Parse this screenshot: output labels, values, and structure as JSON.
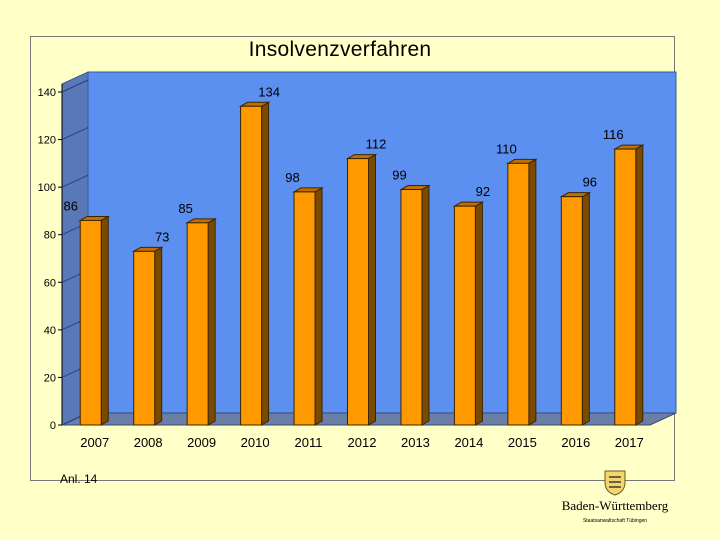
{
  "chart_data": {
    "type": "bar",
    "title": "Insolvenzverfahren",
    "categories": [
      "2007",
      "2008",
      "2009",
      "2010",
      "2011",
      "2012",
      "2013",
      "2014",
      "2015",
      "2016",
      "2017"
    ],
    "values": [
      86,
      73,
      85,
      134,
      98,
      112,
      99,
      92,
      110,
      96,
      116
    ],
    "yticks": [
      0,
      20,
      40,
      60,
      80,
      100,
      120,
      140
    ],
    "ylim": [
      0,
      140
    ],
    "grid": false,
    "legend": "none",
    "bar_color": "#ff9900",
    "wall_color": "#5b8ff0",
    "floor_color": "#6a7fa8"
  },
  "footer": {
    "note": "Anl. 14",
    "logo_title": "Baden-Württemberg",
    "logo_subtitle": "Staatsanwaltschaft Tübingen"
  }
}
